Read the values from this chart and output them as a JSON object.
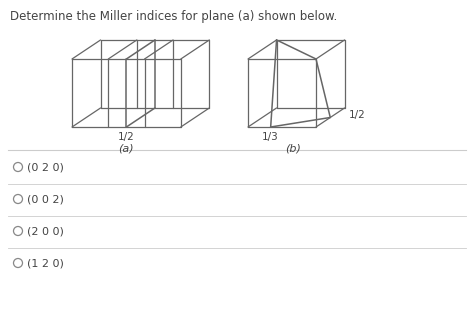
{
  "title": "Determine the Miller indices for plane (a) shown below.",
  "title_fontsize": 8.5,
  "options": [
    "(0 2 0)",
    "(0 0 2)",
    "(2 0 0)",
    "(1 2 0)"
  ],
  "label_a": "(a)",
  "label_b": "(b)",
  "frac_a": "1/2",
  "frac_b1": "1/3",
  "frac_b2": "1/2",
  "line_color": "#666666",
  "bg_color": "#ffffff",
  "option_sep_color": "#cccccc",
  "text_color": "#444444"
}
